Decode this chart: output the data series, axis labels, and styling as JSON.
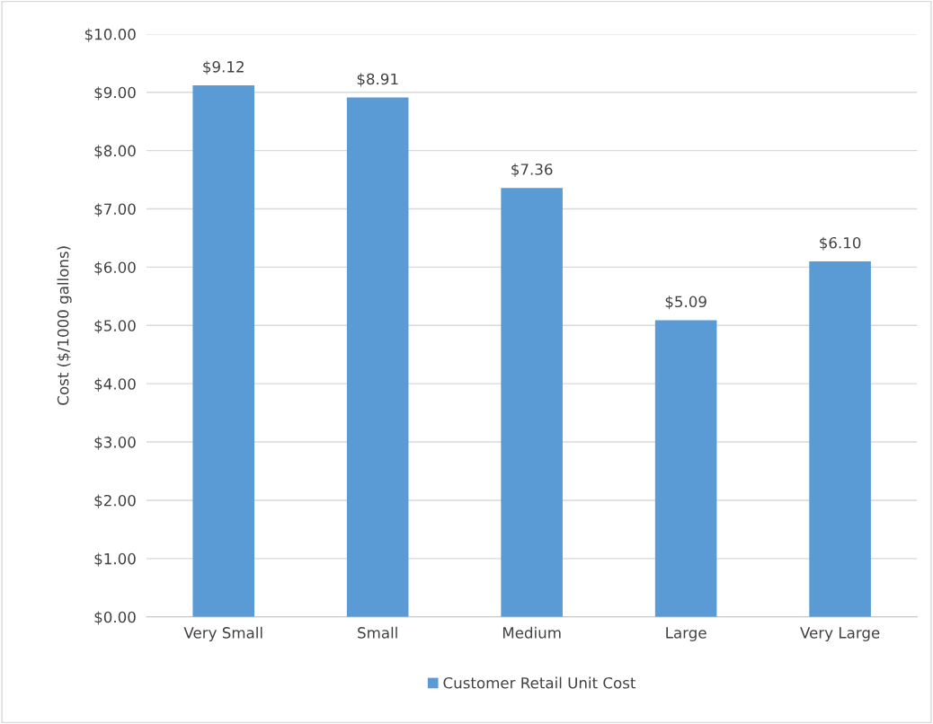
{
  "chart_data": {
    "type": "bar",
    "ylabel": "Cost ($/1000 gallons)",
    "categories": [
      "Very Small",
      "Small",
      "Medium",
      "Large",
      "Very Large"
    ],
    "series": [
      {
        "name": "Customer Retail Unit Cost",
        "color": "#5b9bd5",
        "values": [
          9.12,
          8.91,
          7.36,
          5.09,
          6.1
        ],
        "value_labels": [
          "$9.12",
          "$8.91",
          "$7.36",
          "$5.09",
          "$6.10"
        ]
      }
    ],
    "ylim": [
      0,
      10
    ],
    "yticks": [
      {
        "value": 0,
        "label": "$0.00"
      },
      {
        "value": 1,
        "label": "$1.00"
      },
      {
        "value": 2,
        "label": "$2.00"
      },
      {
        "value": 3,
        "label": "$3.00"
      },
      {
        "value": 4,
        "label": "$4.00"
      },
      {
        "value": 5,
        "label": "$5.00"
      },
      {
        "value": 6,
        "label": "$6.00"
      },
      {
        "value": 7,
        "label": "$7.00"
      },
      {
        "value": 8,
        "label": "$8.00"
      },
      {
        "value": 9,
        "label": "$9.00"
      },
      {
        "value": 10,
        "label": "$10.00"
      }
    ],
    "grid": "y",
    "legend": "bottom"
  }
}
